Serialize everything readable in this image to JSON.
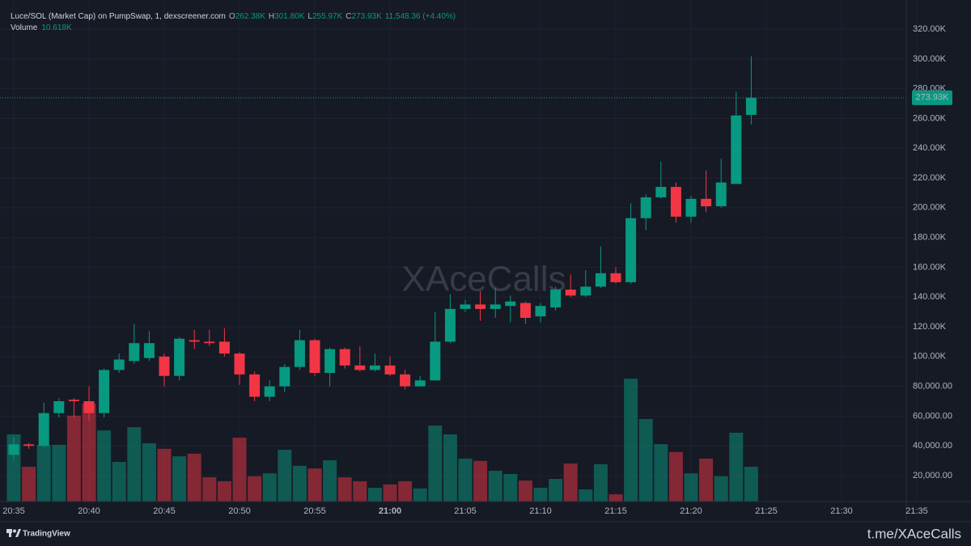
{
  "header": {
    "title": "Luce/SOL (Market Cap) on PumpSwap, 1, dexscreener.com",
    "o_label": "O",
    "o": "262.38K",
    "h_label": "H",
    "h": "301.80K",
    "l_label": "L",
    "l": "255.97K",
    "c_label": "C",
    "c": "273.93K",
    "change": "11,548.36 (+4.40%)",
    "volume_label": "Volume",
    "volume": "10.618K"
  },
  "chart_data": {
    "type": "candlestick",
    "categories": [
      "20:35",
      "20:36",
      "20:37",
      "20:38",
      "20:39",
      "20:40",
      "20:41",
      "20:42",
      "20:43",
      "20:44",
      "20:45",
      "20:46",
      "20:47",
      "20:48",
      "20:49",
      "20:50",
      "20:51",
      "20:52",
      "20:53",
      "20:54",
      "20:55",
      "20:56",
      "20:57",
      "20:58",
      "20:59",
      "21:00",
      "21:01",
      "21:02",
      "21:03",
      "21:04",
      "21:05",
      "21:06",
      "21:07",
      "21:08",
      "21:09",
      "21:10",
      "21:11",
      "21:12",
      "21:13",
      "21:14",
      "21:15",
      "21:16",
      "21:17",
      "21:18",
      "21:19",
      "21:20",
      "21:21",
      "21:22",
      "21:23",
      "21:24"
    ],
    "open": [
      34000,
      41000,
      40000,
      62000,
      71000,
      70000,
      62000,
      91000,
      97000,
      99000,
      100000,
      87000,
      111000,
      110000,
      110000,
      102000,
      88000,
      73000,
      80000,
      93000,
      111000,
      89000,
      105000,
      94000,
      91000,
      94000,
      88000,
      80000,
      84000,
      110000,
      132000,
      135000,
      132000,
      134000,
      136000,
      127000,
      133000,
      145000,
      141000,
      147000,
      156000,
      150000,
      193000,
      207000,
      214000,
      194000,
      206000,
      201000,
      216000,
      262380
    ],
    "high": [
      46000,
      42000,
      69000,
      72000,
      72000,
      80000,
      92000,
      102000,
      122000,
      117000,
      102000,
      113000,
      118000,
      118000,
      119000,
      103000,
      90000,
      84000,
      95000,
      118000,
      112000,
      106000,
      106000,
      107000,
      102000,
      100000,
      91000,
      87000,
      130000,
      142000,
      138000,
      144000,
      146000,
      141000,
      137000,
      136000,
      147000,
      155000,
      158000,
      174000,
      160000,
      203000,
      209000,
      231000,
      217000,
      208000,
      225000,
      233000,
      278000,
      301800
    ],
    "low": [
      31000,
      38000,
      39000,
      59000,
      59000,
      57000,
      59000,
      89000,
      95000,
      97000,
      80000,
      84000,
      105000,
      107000,
      100000,
      81000,
      70000,
      70000,
      76000,
      91000,
      87000,
      80000,
      92000,
      90000,
      90000,
      87000,
      78000,
      80000,
      84000,
      109000,
      130000,
      124000,
      126000,
      123000,
      122000,
      123000,
      131000,
      140000,
      140000,
      146000,
      149000,
      149000,
      185000,
      206000,
      190000,
      190000,
      197000,
      200000,
      216000,
      255970
    ],
    "close": [
      41000,
      40000,
      62000,
      70000,
      70000,
      62000,
      91000,
      98000,
      109000,
      109000,
      87000,
      112000,
      110000,
      109000,
      102000,
      88000,
      73000,
      80000,
      93000,
      111000,
      89000,
      105000,
      94000,
      91000,
      94000,
      88000,
      80000,
      84000,
      110000,
      132000,
      135000,
      132000,
      135000,
      137000,
      126000,
      134000,
      145000,
      141000,
      147000,
      156000,
      150000,
      193000,
      207000,
      214000,
      194000,
      206000,
      201000,
      217000,
      262000,
      273930
    ],
    "volume": [
      20500,
      10600,
      17300,
      17300,
      26200,
      29900,
      21700,
      12100,
      22700,
      17800,
      16100,
      13800,
      14600,
      7400,
      6200,
      19500,
      7700,
      8600,
      15800,
      10900,
      10100,
      12600,
      7400,
      6200,
      4200,
      5200,
      6200,
      4000,
      23200,
      20500,
      13100,
      12400,
      9400,
      8400,
      6400,
      4200,
      6900,
      11600,
      3700,
      11400,
      2200,
      37500,
      25200,
      17500,
      15100,
      8600,
      13100,
      7700,
      21000,
      10618
    ],
    "up_color": "#089981",
    "down_color": "#f23645",
    "ylim": [
      2600,
      339600
    ],
    "yticks": [
      {
        "value": 20000,
        "label": "20,000.00"
      },
      {
        "value": 40000,
        "label": "40,000.00"
      },
      {
        "value": 60000,
        "label": "60,000.00"
      },
      {
        "value": 80000,
        "label": "80,000.00"
      },
      {
        "value": 100000,
        "label": "100.00K"
      },
      {
        "value": 120000,
        "label": "120.00K"
      },
      {
        "value": 140000,
        "label": "140.00K"
      },
      {
        "value": 160000,
        "label": "160.00K"
      },
      {
        "value": 180000,
        "label": "180.00K"
      },
      {
        "value": 200000,
        "label": "200.00K"
      },
      {
        "value": 220000,
        "label": "220.00K"
      },
      {
        "value": 240000,
        "label": "240.00K"
      },
      {
        "value": 260000,
        "label": "260.00K"
      },
      {
        "value": 280000,
        "label": "280.00K"
      },
      {
        "value": 300000,
        "label": "300.00K"
      },
      {
        "value": 320000,
        "label": "320.00K"
      }
    ],
    "xticks": [
      "20:35",
      "20:40",
      "20:45",
      "20:50",
      "20:55",
      "21:00",
      "21:05",
      "21:10",
      "21:15",
      "21:20",
      "21:25",
      "21:30",
      "21:35"
    ],
    "grid": true,
    "last_price_label": "273.93K",
    "watermark": "XAceCalls"
  },
  "footer": {
    "brand": "TradingView",
    "link": "t.me/XAceCalls"
  }
}
